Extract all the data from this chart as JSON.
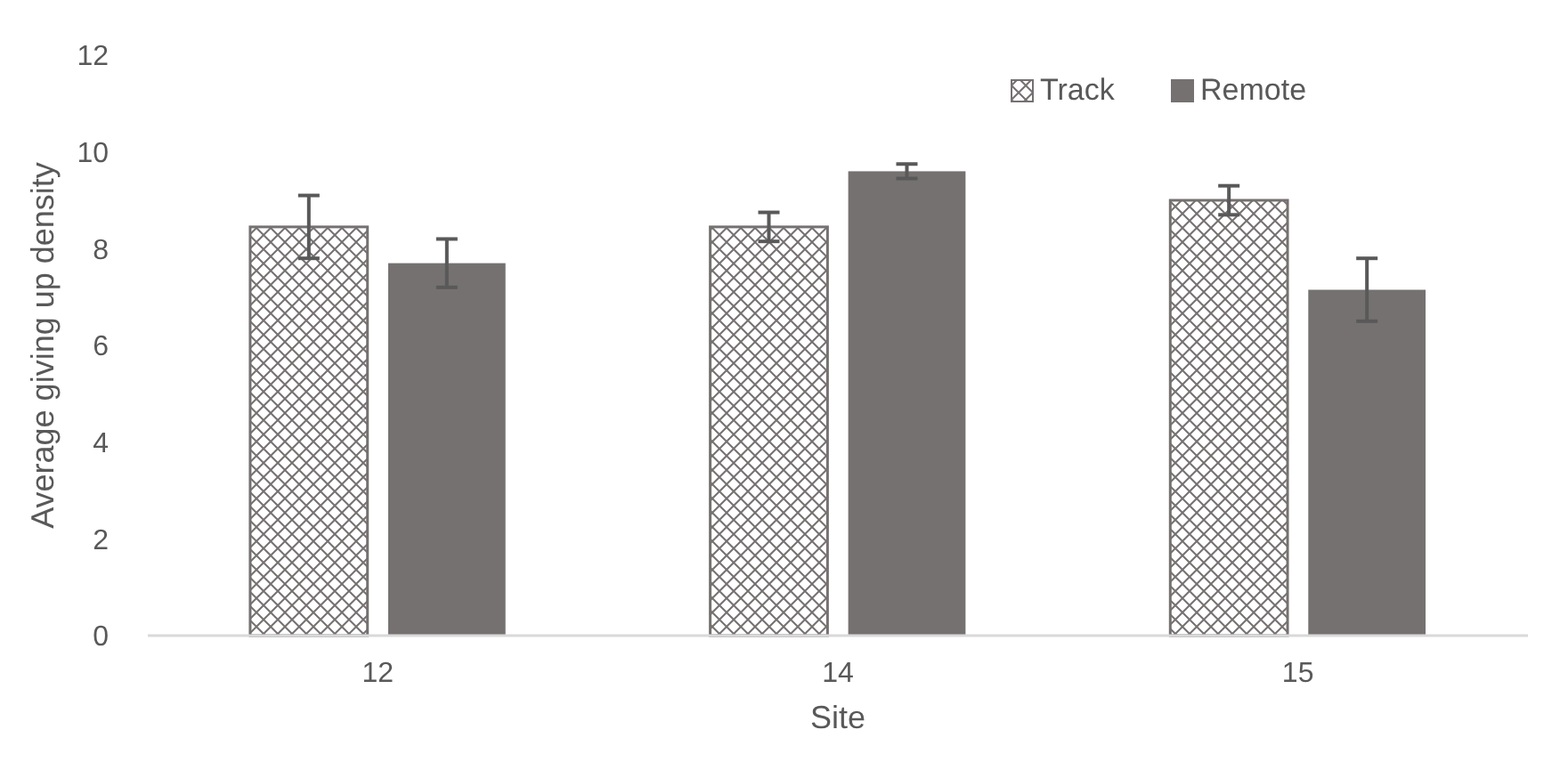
{
  "chart_data": {
    "type": "bar",
    "xlabel": "Site",
    "ylabel": "Average giving up density",
    "categories": [
      "12",
      "14",
      "15"
    ],
    "series": [
      {
        "name": "Track",
        "color": "#767171",
        "values": [
          8.45,
          8.45,
          9.0
        ],
        "errors": [
          0.65,
          0.3,
          0.3
        ]
      },
      {
        "name": "Remote",
        "color": "#767171",
        "values": [
          7.7,
          9.6,
          7.15
        ],
        "errors": [
          0.5,
          0.15,
          0.65
        ]
      }
    ],
    "ylim": [
      0,
      12
    ],
    "yticks": [
      0,
      2,
      4,
      6,
      8,
      10,
      12
    ],
    "grid": false,
    "legend": "top right"
  }
}
